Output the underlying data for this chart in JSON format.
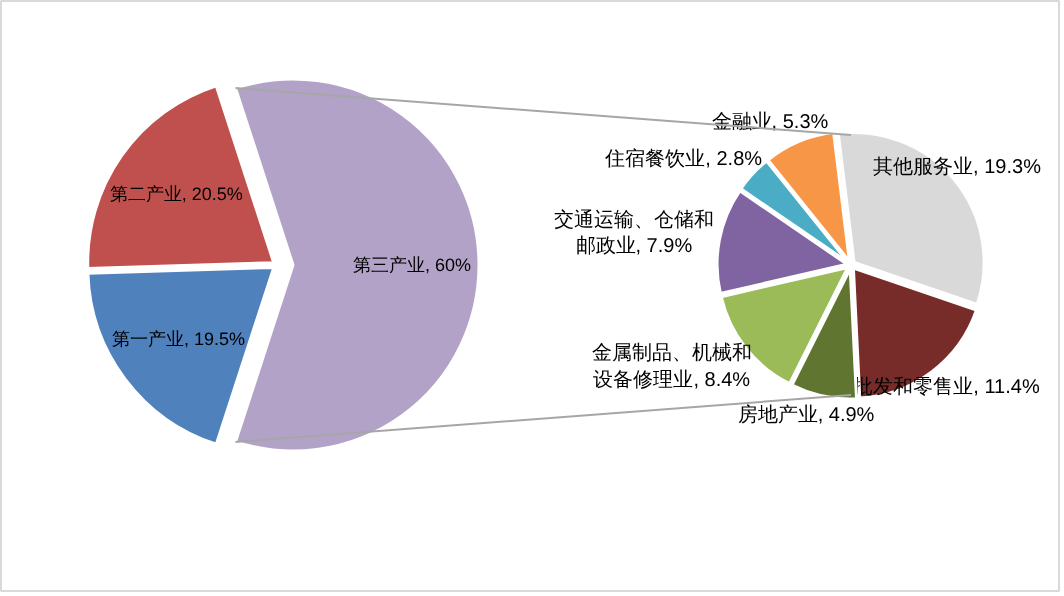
{
  "chart_data": [
    {
      "type": "pie",
      "categories": [
        "第三产业",
        "第一产业",
        "第二产业"
      ],
      "values": [
        60,
        19.5,
        20.5
      ],
      "colors": [
        "#b3a2c7",
        "#4f81bd",
        "#c0504d"
      ],
      "value_labels": [
        "60%",
        "19.5%",
        "20.5%"
      ]
    },
    {
      "type": "pie",
      "categories": [
        "其他服务业",
        "批发和零售业",
        "房地产业",
        "金属制品、机械和设备修理业",
        "交通运输、仓储和邮政业",
        "住宿餐饮业",
        "金融业"
      ],
      "values": [
        19.3,
        11.4,
        4.9,
        8.4,
        7.9,
        2.8,
        5.3
      ],
      "colors": [
        "#d9d9d9",
        "#772c2a",
        "#5f7530",
        "#9bbb59",
        "#8064a2",
        "#4bacc6",
        "#f79646"
      ],
      "value_labels": [
        "19.3%",
        "11.4%",
        "4.9%",
        "8.4%",
        "7.9%",
        "2.8%",
        "5.3%"
      ]
    }
  ]
}
